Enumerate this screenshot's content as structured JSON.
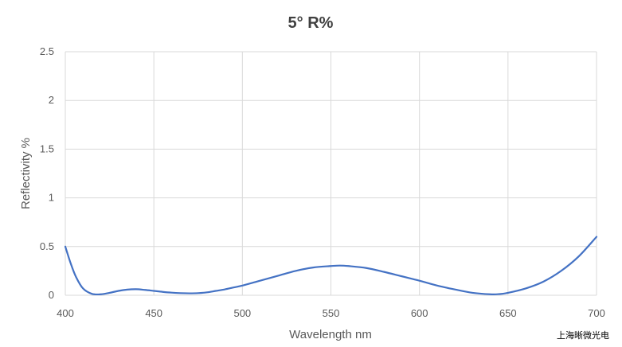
{
  "chart_data": {
    "type": "line",
    "title": "5° R%",
    "xlabel": "Wavelength nm",
    "ylabel": "Reflectivity %",
    "xlim": [
      400,
      700
    ],
    "ylim": [
      0,
      2.5
    ],
    "x_ticks": [
      "400",
      "450",
      "500",
      "550",
      "600",
      "650",
      "700"
    ],
    "y_ticks": [
      "0",
      "0.5",
      "1",
      "1.5",
      "2",
      "2.5"
    ],
    "grid": true,
    "series_color": "#4472c4",
    "series": [
      {
        "x": [
          400,
          403,
          406,
          410,
          415,
          420,
          425,
          430,
          435,
          440,
          445,
          450,
          455,
          460,
          465,
          470,
          475,
          480,
          485,
          490,
          495,
          500,
          510,
          520,
          530,
          540,
          550,
          555,
          560,
          570,
          580,
          590,
          600,
          610,
          620,
          630,
          640,
          645,
          650,
          660,
          670,
          680,
          690,
          700
        ],
        "values": [
          0.5,
          0.33,
          0.19,
          0.07,
          0.015,
          0.01,
          0.025,
          0.045,
          0.058,
          0.062,
          0.055,
          0.045,
          0.035,
          0.027,
          0.022,
          0.02,
          0.022,
          0.03,
          0.045,
          0.06,
          0.08,
          0.1,
          0.15,
          0.2,
          0.25,
          0.285,
          0.3,
          0.305,
          0.3,
          0.28,
          0.24,
          0.195,
          0.15,
          0.1,
          0.06,
          0.025,
          0.01,
          0.012,
          0.025,
          0.07,
          0.14,
          0.25,
          0.4,
          0.6
        ]
      }
    ]
  },
  "watermark": "上海晰微光电"
}
